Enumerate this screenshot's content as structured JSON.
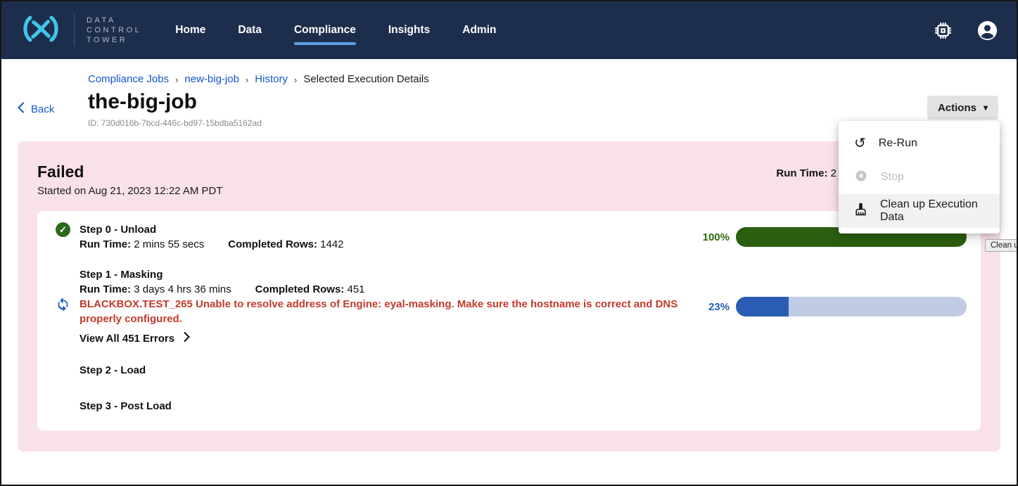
{
  "navbar": {
    "brand_lines": [
      "DATA",
      "CONTROL",
      "TOWER"
    ],
    "items": [
      {
        "label": "Home",
        "active": false
      },
      {
        "label": "Data",
        "active": false
      },
      {
        "label": "Compliance",
        "active": true
      },
      {
        "label": "Insights",
        "active": false
      },
      {
        "label": "Admin",
        "active": false
      }
    ]
  },
  "header": {
    "back_label": "Back",
    "breadcrumb": {
      "separator": "›",
      "items": [
        {
          "label": "Compliance Jobs"
        },
        {
          "label": "new-big-job"
        },
        {
          "label": "History"
        },
        {
          "label": "Selected Execution Details"
        }
      ]
    },
    "title": "the-big-job",
    "job_id": "ID: 730d016b-7bcd-446c-bd97-15bdba5162ad",
    "actions_label": "Actions",
    "actions_caret": "▾"
  },
  "actions_menu": {
    "items": [
      {
        "label": "Re-Run",
        "disabled": false
      },
      {
        "label": "Stop",
        "disabled": true
      },
      {
        "label": "Clean up Execution Data",
        "disabled": false,
        "highlighted": true
      }
    ],
    "rerun_glyph": "↺"
  },
  "tooltip": {
    "text": "Clean up"
  },
  "execution": {
    "status": "Failed",
    "started": "Started on Aug 21, 2023 12:22 AM PDT",
    "run_time_label": "Run Time:",
    "run_time_value": " 2",
    "steps": [
      {
        "title": "Step 0 - Unload",
        "run_time_label": "Run Time:",
        "run_time": " 2 mins 55 secs",
        "completed_label": "Completed Rows:",
        "completed_rows": " 1442",
        "progress_label": "100%",
        "progress_value": 100,
        "check_glyph": "✓"
      },
      {
        "title": "Step 1 - Masking",
        "run_time_label": "Run Time:",
        "run_time": " 3 days 4 hrs 36 mins",
        "completed_label": "Completed Rows:",
        "completed_rows": " 451",
        "error": "BLACKBOX.TEST_265 Unable to resolve address of Engine: eyal-masking. Make sure the hostname is correct and DNS properly configured.",
        "view_errors_label": "View All 451 Errors",
        "progress_label": "23%",
        "progress_value": 23
      },
      {
        "title": "Step 2 - Load"
      },
      {
        "title": "Step 3 - Post Load"
      }
    ]
  },
  "colors": {
    "navbar_bg": "#1d2e4c",
    "brand_blue": "#41c5ea",
    "active_tab_underline": "#5d9ee2",
    "link_blue": "#1356cc",
    "card_pink": "#f9e2e7",
    "success_green": "#2c5e10",
    "progress_blue": "#2a5cb4",
    "progress_track": "#c0cce4",
    "error_red": "#c23a2c"
  }
}
